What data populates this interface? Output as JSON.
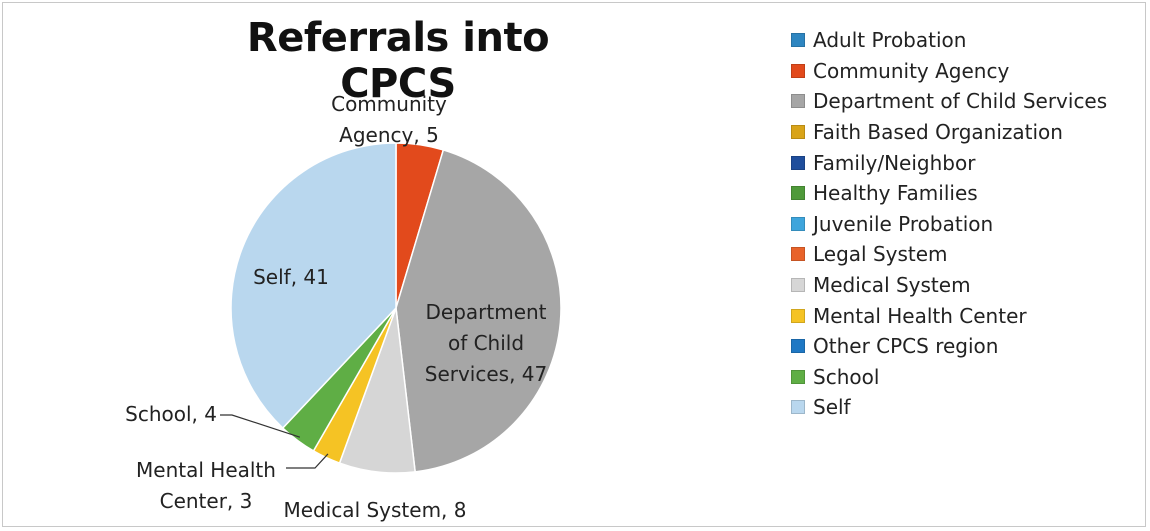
{
  "chart_data": {
    "type": "pie",
    "title": "Referrals into CPCS",
    "legend_position": "right",
    "categories": [
      "Adult Probation",
      "Community Agency",
      "Department of Child Services",
      "Faith Based Organization",
      "Family/Neighbor",
      "Healthy Families",
      "Juvenile Probation",
      "Legal System",
      "Medical System",
      "Mental Health Center",
      "Other CPCS region",
      "School",
      "Self"
    ],
    "values": [
      0,
      5,
      47,
      0,
      0,
      0,
      0,
      0,
      8,
      3,
      0,
      4,
      41
    ],
    "colors": [
      "#2e86c1",
      "#e24a1c",
      "#a6a6a6",
      "#d9a419",
      "#1f4e9c",
      "#4f9a3a",
      "#3ea5dc",
      "#e8632a",
      "#d6d6d6",
      "#f5c324",
      "#1f78c4",
      "#5fae45",
      "#b9d7ee"
    ],
    "data_labels": [
      {
        "category": "Community Agency",
        "lines": [
          "Community",
          "Agency, 5"
        ]
      },
      {
        "category": "Department of Child Services",
        "lines": [
          "Department",
          "of Child",
          "Services, 47"
        ]
      },
      {
        "category": "Medical System",
        "lines": [
          "Medical System, 8"
        ]
      },
      {
        "category": "Mental Health Center",
        "lines": [
          "Mental Health",
          "Center, 3"
        ]
      },
      {
        "category": "School",
        "lines": [
          "School, 4"
        ]
      },
      {
        "category": "Self",
        "lines": [
          "Self, 41"
        ]
      }
    ]
  }
}
